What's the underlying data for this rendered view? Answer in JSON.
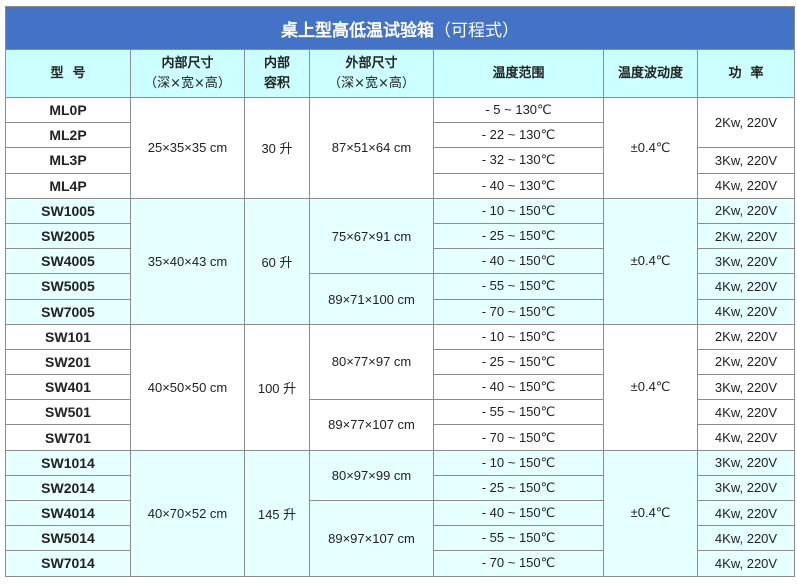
{
  "title": {
    "main": "桌上型高低温试验箱",
    "sub": "（可程式）"
  },
  "headers": {
    "model": "型  号",
    "inner_size": "内部尺寸",
    "inner_size_sub": "（深×宽×高）",
    "volume_1": "内部",
    "volume_2": "容积",
    "outer_size": "外部尺寸",
    "outer_size_sub": "（深×宽×高）",
    "temp_range": "温度范围",
    "fluctuation": "温度波动度",
    "power": "功  率"
  },
  "colors": {
    "title_bg": "#4472c4",
    "header_bg": "#ccffff",
    "alt_row_bg": "#e6ffff"
  },
  "groups": [
    {
      "alt": false,
      "inner": "25×35×35 cm",
      "volume": "30 升",
      "fluctuation": "±0.4℃",
      "models": [
        "ML0P",
        "ML2P",
        "ML3P",
        "ML4P"
      ],
      "temps": [
        "- 5 ~ 130℃",
        "- 22 ~ 130℃",
        "- 32 ~ 130℃",
        "- 40 ~ 130℃"
      ],
      "outer": [
        {
          "value": "87×51×64 cm",
          "span": 4
        }
      ],
      "power": [
        {
          "value": "2Kw, 220V",
          "span": 2
        },
        {
          "value": "3Kw, 220V",
          "span": 1
        },
        {
          "value": "4Kw, 220V",
          "span": 1
        }
      ]
    },
    {
      "alt": true,
      "inner": "35×40×43 cm",
      "volume": "60 升",
      "fluctuation": "±0.4℃",
      "models": [
        "SW1005",
        "SW2005",
        "SW4005",
        "SW5005",
        "SW7005"
      ],
      "temps": [
        "- 10 ~ 150℃",
        "- 25 ~ 150℃",
        "- 40 ~ 150℃",
        "- 55 ~ 150℃",
        "- 70 ~ 150℃"
      ],
      "outer": [
        {
          "value": "75×67×91 cm",
          "span": 3
        },
        {
          "value": "89×71×100 cm",
          "span": 2
        }
      ],
      "power": [
        {
          "value": "2Kw, 220V",
          "span": 1
        },
        {
          "value": "2Kw, 220V",
          "span": 1
        },
        {
          "value": "3Kw, 220V",
          "span": 1
        },
        {
          "value": "4Kw, 220V",
          "span": 1
        },
        {
          "value": "4Kw, 220V",
          "span": 1
        }
      ]
    },
    {
      "alt": false,
      "inner": "40×50×50 cm",
      "volume": "100 升",
      "fluctuation": "±0.4℃",
      "models": [
        "SW101",
        "SW201",
        "SW401",
        "SW501",
        "SW701"
      ],
      "temps": [
        "- 10 ~ 150℃",
        "- 25 ~ 150℃",
        "- 40 ~ 150℃",
        "- 55 ~ 150℃",
        "- 70 ~ 150℃"
      ],
      "outer": [
        {
          "value": "80×77×97 cm",
          "span": 3
        },
        {
          "value": "89×77×107 cm",
          "span": 2
        }
      ],
      "power": [
        {
          "value": "2Kw, 220V",
          "span": 1
        },
        {
          "value": "2Kw, 220V",
          "span": 1
        },
        {
          "value": "3Kw, 220V",
          "span": 1
        },
        {
          "value": "4Kw, 220V",
          "span": 1
        },
        {
          "value": "4Kw, 220V",
          "span": 1
        }
      ]
    },
    {
      "alt": true,
      "inner": "40×70×52 cm",
      "volume": "145 升",
      "fluctuation": "±0.4℃",
      "models": [
        "SW1014",
        "SW2014",
        "SW4014",
        "SW5014",
        "SW7014"
      ],
      "temps": [
        "- 10 ~ 150℃",
        "- 25 ~ 150℃",
        "- 40 ~ 150℃",
        "- 55 ~ 150℃",
        "- 70 ~ 150℃"
      ],
      "outer": [
        {
          "value": "80×97×99 cm",
          "span": 2
        },
        {
          "value": "89×97×107 cm",
          "span": 3
        }
      ],
      "power": [
        {
          "value": "3Kw, 220V",
          "span": 1
        },
        {
          "value": "3Kw, 220V",
          "span": 1
        },
        {
          "value": "4Kw, 220V",
          "span": 1
        },
        {
          "value": "4Kw, 220V",
          "span": 1
        },
        {
          "value": "4Kw, 220V",
          "span": 1
        }
      ]
    }
  ]
}
